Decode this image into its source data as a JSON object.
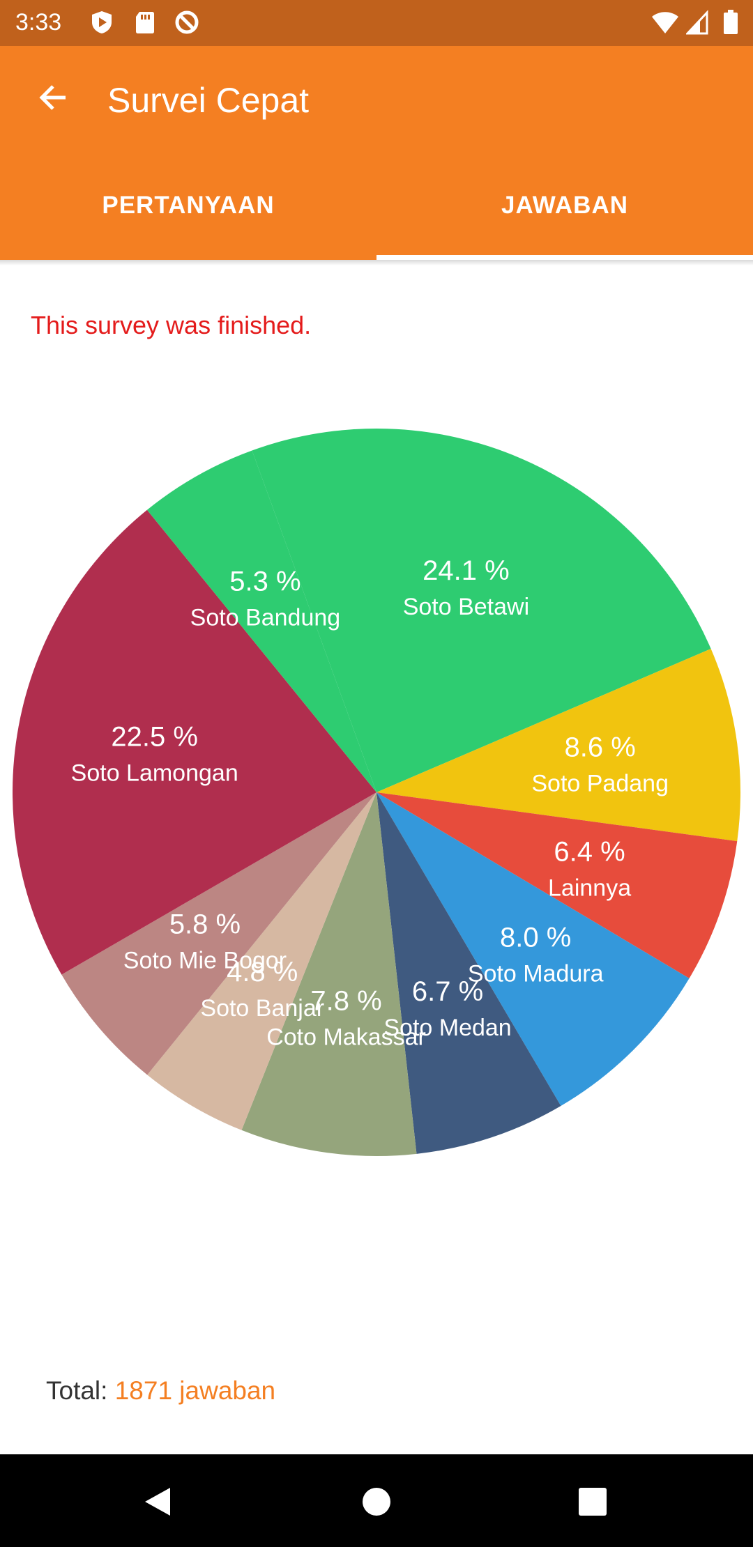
{
  "status_bar": {
    "time": "3:33",
    "left_icons": [
      "shield-play-icon",
      "sd-card-icon",
      "sync-blocked-icon"
    ],
    "right_icons": [
      "wifi-icon",
      "cellular-signal-icon",
      "battery-icon"
    ]
  },
  "app_bar": {
    "title": "Survei Cepat",
    "back_icon": "arrow-left-icon"
  },
  "tabs": [
    {
      "label": "PERTANYAAN",
      "selected": false
    },
    {
      "label": "JAWABAN",
      "selected": true
    }
  ],
  "notice": "This survey was finished.",
  "chart_data": {
    "type": "pie",
    "slices": [
      {
        "label": "Soto Betawi",
        "value": 24.1,
        "value_label": "24.1 %",
        "color": "#2ecc71"
      },
      {
        "label": "Soto Padang",
        "value": 8.6,
        "value_label": "8.6 %",
        "color": "#f1c40f"
      },
      {
        "label": "Lainnya",
        "value": 6.4,
        "value_label": "6.4 %",
        "color": "#e74c3c"
      },
      {
        "label": "Soto Madura",
        "value": 8.0,
        "value_label": "8.0 %",
        "color": "#3498db"
      },
      {
        "label": "Soto Medan",
        "value": 6.7,
        "value_label": "6.7 %",
        "color": "#3f5a80"
      },
      {
        "label": "Coto Makassar",
        "value": 7.8,
        "value_label": "7.8 %",
        "color": "#95a57c"
      },
      {
        "label": "Soto Banjar",
        "value": 4.8,
        "value_label": "4.8 %",
        "color": "#d6b8a2"
      },
      {
        "label": "Soto Mie Bogor",
        "value": 5.8,
        "value_label": "5.8 %",
        "color": "#bc8683"
      },
      {
        "label": "Soto Lamongan",
        "value": 22.5,
        "value_label": "22.5 %",
        "color": "#b02e4e"
      },
      {
        "label": "Soto Bandung",
        "value": 5.3,
        "value_label": "5.3 %",
        "color": "#2ecc71"
      }
    ],
    "start_angle_deg": -20,
    "direction": "clockwise"
  },
  "total": {
    "label": "Total: ",
    "value": "1871 jawaban"
  },
  "nav_bar": {
    "icons": [
      "back-triangle-icon",
      "home-circle-icon",
      "recents-square-icon"
    ]
  }
}
